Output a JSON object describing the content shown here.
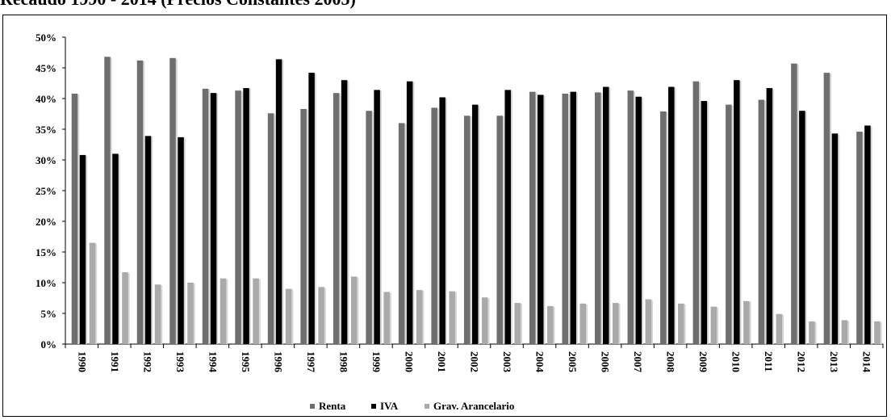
{
  "page_title": "Recaudo 1990 - 2014 (Precios Constantes 2005)",
  "chart_data": {
    "type": "bar",
    "categories": [
      "1990",
      "1991",
      "1992",
      "1993",
      "1994",
      "1995",
      "1996",
      "1997",
      "1998",
      "1999",
      "2000",
      "2001",
      "2002",
      "2003",
      "2004",
      "2005",
      "2006",
      "2007",
      "2008",
      "2009",
      "2010",
      "2011",
      "2012",
      "2013",
      "2014"
    ],
    "series": [
      {
        "name": "Renta",
        "color": "#6e6e6e",
        "values": [
          40.8,
          46.8,
          46.2,
          46.6,
          41.6,
          41.3,
          37.6,
          38.3,
          40.9,
          38.0,
          36.0,
          38.5,
          37.2,
          37.2,
          41.1,
          40.8,
          41.0,
          41.3,
          37.9,
          42.8,
          39.0,
          39.8,
          45.7,
          44.2,
          34.6
        ]
      },
      {
        "name": "IVA",
        "color": "#000000",
        "values": [
          30.8,
          31.0,
          33.9,
          33.7,
          40.9,
          41.7,
          46.4,
          44.2,
          43.0,
          41.4,
          42.8,
          40.2,
          39.0,
          41.4,
          40.6,
          41.1,
          41.9,
          40.3,
          41.9,
          39.6,
          43.0,
          41.7,
          38.0,
          34.3,
          35.6
        ]
      },
      {
        "name": "Grav. Arancelario",
        "color": "#aaaaaa",
        "values": [
          16.5,
          11.7,
          9.7,
          10.0,
          10.7,
          10.7,
          9.0,
          9.3,
          11.0,
          8.5,
          8.8,
          8.6,
          7.6,
          6.7,
          6.2,
          6.6,
          6.7,
          7.3,
          6.6,
          6.1,
          7.0,
          4.9,
          3.7,
          3.9,
          3.7
        ]
      }
    ],
    "ylim": [
      0,
      50
    ],
    "yticks": [
      "0%",
      "5%",
      "10%",
      "15%",
      "20%",
      "25%",
      "30%",
      "35%",
      "40%",
      "45%",
      "50%"
    ],
    "legend_position": "bottom-center",
    "grid": false
  }
}
